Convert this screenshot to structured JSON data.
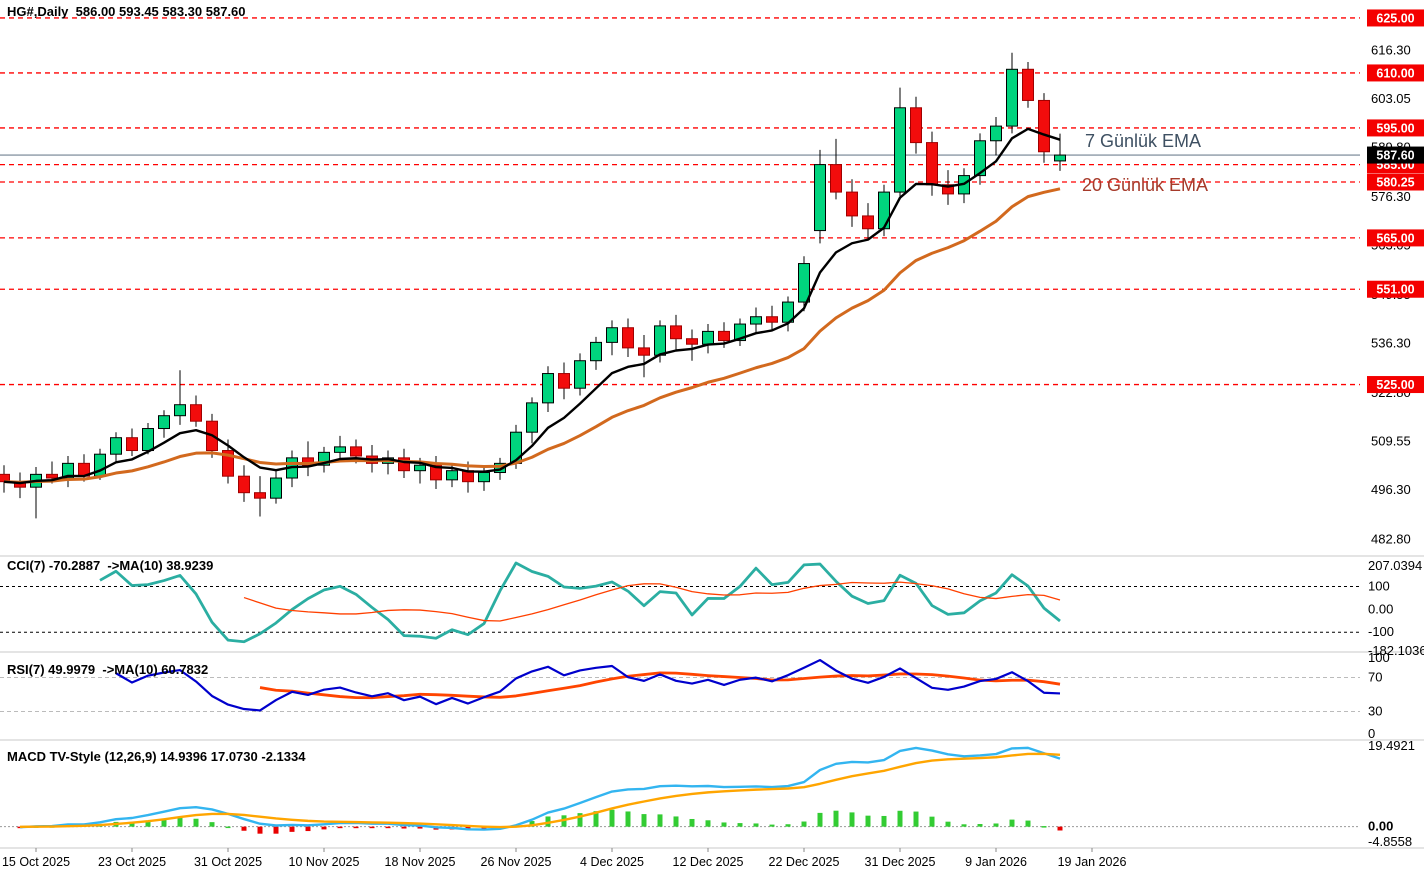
{
  "title": "HG#,Daily  586.00 593.45 583.30 587.60",
  "ema_labels": {
    "ema7": {
      "text": "7 Günlük EMA",
      "color": "#3E5062"
    },
    "ema20": {
      "text": "20 Günlük EMA",
      "color": "#A63A2A"
    }
  },
  "price_axis": {
    "marked_levels": [
      {
        "value": 625.0,
        "label": "625.00"
      },
      {
        "value": 610.0,
        "label": "610.00"
      },
      {
        "value": 595.0,
        "label": "595.00"
      },
      {
        "value": 585.0,
        "label": "585.00"
      },
      {
        "value": 580.25,
        "label": "580.25"
      },
      {
        "value": 565.0,
        "label": "565.00"
      },
      {
        "value": 551.0,
        "label": "551.00"
      },
      {
        "value": 525.0,
        "label": "525.00"
      }
    ],
    "current_price": {
      "value": 587.6,
      "label": "587.60"
    },
    "plain_ticks": [
      {
        "value": 616.3,
        "label": "616.30"
      },
      {
        "value": 603.05,
        "label": "603.05"
      },
      {
        "value": 589.8,
        "label": "589.80"
      },
      {
        "value": 576.3,
        "label": "576.30"
      },
      {
        "value": 563.05,
        "label": "563.05"
      },
      {
        "value": 549.55,
        "label": "549.55"
      },
      {
        "value": 536.3,
        "label": "536.30"
      },
      {
        "value": 522.8,
        "label": "522.80"
      },
      {
        "value": 509.55,
        "label": "509.55"
      },
      {
        "value": 496.3,
        "label": "496.30"
      },
      {
        "value": 482.8,
        "label": "482.80"
      }
    ]
  },
  "time_axis": [
    "15 Oct 2025",
    "23 Oct 2025",
    "31 Oct 2025",
    "10 Nov 2025",
    "18 Nov 2025",
    "26 Nov 2025",
    "4 Dec 2025",
    "12 Dec 2025",
    "22 Dec 2025",
    "31 Dec 2025",
    "9 Jan 2026",
    "19 Jan 2026"
  ],
  "panels": {
    "cci": {
      "title": "CCI(7) -70.2887  ->MA(10) 38.9239",
      "range": [
        207.0394,
        -182.1036
      ],
      "dashed_levels": [
        100,
        -100
      ],
      "axis_labels": [
        {
          "v": 207.0394,
          "t": "207.0394"
        },
        {
          "v": 100,
          "t": "100"
        },
        {
          "v": 0,
          "t": "0.00"
        },
        {
          "v": -100,
          "t": "-100"
        },
        {
          "v": -182.1036,
          "t": "-182.1036"
        }
      ]
    },
    "rsi": {
      "title": "RSI(7) 49.9979  ->MA(10) 60.7832",
      "range": [
        100,
        0
      ],
      "dashed_levels": [
        70,
        30
      ],
      "axis_labels": [
        {
          "v": 100,
          "t": "100"
        },
        {
          "v": 70,
          "t": "70"
        },
        {
          "v": 30,
          "t": "30"
        },
        {
          "v": 0,
          "t": "0"
        }
      ]
    },
    "macd": {
      "title": "MACD TV-Style (12,26,9) 14.9396 17.0730 -2.1334",
      "range": [
        19.4921,
        -4.8558
      ],
      "axis_labels": [
        {
          "v": 19.4921,
          "t": "19.4921",
          "bold": false
        },
        {
          "v": 0,
          "t": "0.00",
          "bold": true
        },
        {
          "v": -4.8558,
          "t": "-4.8558",
          "bold": false
        }
      ]
    }
  },
  "chart_data": {
    "type": "candlestick",
    "symbol": "HG#",
    "timeframe": "Daily",
    "ohlc_display": {
      "open": "586.00",
      "high": "593.45",
      "low": "583.30",
      "close": "587.60"
    },
    "overlays": [
      {
        "name": "EMA",
        "period": 7
      },
      {
        "name": "EMA",
        "period": 20
      }
    ],
    "sub_indicators": [
      {
        "name": "CCI",
        "period": 7,
        "ma": 10,
        "last": -70.2887,
        "ma_last": 38.9239
      },
      {
        "name": "RSI",
        "period": 7,
        "ma": 10,
        "last": 49.9979,
        "ma_last": 60.7832
      },
      {
        "name": "MACD TV-Style",
        "params": [
          12,
          26,
          9
        ],
        "macd_last": 14.9396,
        "signal_last": 17.073,
        "hist_last": -2.1334
      }
    ],
    "ylim": [
      478.5,
      629.9
    ],
    "grid": "horizontal-levels-only",
    "candles": [
      [
        500.5,
        503.0,
        495.5,
        498.5
      ],
      [
        498.5,
        501.0,
        494.0,
        497.0
      ],
      [
        497.0,
        502.5,
        488.5,
        500.5
      ],
      [
        500.5,
        504.0,
        498.0,
        499.5
      ],
      [
        499.5,
        505.5,
        497.0,
        503.5
      ],
      [
        503.5,
        506.0,
        498.5,
        500.0
      ],
      [
        500.0,
        507.5,
        499.0,
        506.0
      ],
      [
        506.0,
        512.0,
        504.0,
        510.5
      ],
      [
        510.5,
        513.0,
        505.5,
        507.0
      ],
      [
        507.0,
        514.5,
        506.0,
        513.0
      ],
      [
        513.0,
        518.0,
        510.5,
        516.5
      ],
      [
        516.5,
        528.9,
        514.0,
        519.5
      ],
      [
        519.5,
        522.0,
        513.5,
        515.0
      ],
      [
        515.0,
        517.0,
        505.0,
        507.0
      ],
      [
        507.0,
        510.0,
        498.0,
        500.0
      ],
      [
        500.0,
        503.0,
        493.0,
        495.5
      ],
      [
        495.5,
        500.0,
        489.0,
        494.0
      ],
      [
        494.0,
        501.5,
        492.5,
        499.5
      ],
      [
        499.5,
        507.0,
        497.0,
        505.0
      ],
      [
        505.0,
        509.5,
        500.0,
        503.0
      ],
      [
        503.0,
        508.0,
        501.0,
        506.5
      ],
      [
        506.5,
        511.0,
        504.0,
        508.0
      ],
      [
        508.0,
        510.0,
        503.5,
        505.5
      ],
      [
        505.5,
        508.5,
        501.0,
        503.5
      ],
      [
        503.5,
        507.0,
        500.5,
        505.0
      ],
      [
        505.0,
        507.5,
        499.5,
        501.5
      ],
      [
        501.5,
        505.0,
        498.0,
        503.0
      ],
      [
        503.0,
        505.5,
        496.5,
        499.0
      ],
      [
        499.0,
        503.5,
        497.0,
        501.5
      ],
      [
        501.5,
        504.0,
        495.5,
        498.5
      ],
      [
        498.5,
        503.0,
        496.0,
        501.0
      ],
      [
        501.0,
        505.0,
        499.0,
        503.5
      ],
      [
        503.5,
        514.0,
        502.0,
        512.0
      ],
      [
        512.0,
        521.5,
        509.0,
        520.0
      ],
      [
        520.0,
        530.0,
        517.5,
        528.0
      ],
      [
        528.0,
        531.0,
        521.0,
        524.0
      ],
      [
        524.0,
        533.5,
        522.0,
        531.5
      ],
      [
        531.5,
        538.0,
        529.0,
        536.5
      ],
      [
        536.5,
        542.5,
        533.0,
        540.5
      ],
      [
        540.5,
        543.0,
        532.5,
        535.0
      ],
      [
        535.0,
        538.5,
        527.0,
        533.0
      ],
      [
        533.0,
        542.5,
        531.0,
        541.0
      ],
      [
        541.0,
        544.0,
        534.5,
        537.5
      ],
      [
        537.5,
        540.0,
        531.5,
        536.0
      ],
      [
        536.0,
        541.5,
        533.5,
        539.5
      ],
      [
        539.5,
        542.0,
        535.0,
        537.0
      ],
      [
        537.0,
        543.0,
        535.5,
        541.5
      ],
      [
        541.5,
        546.0,
        539.0,
        543.5
      ],
      [
        543.5,
        546.5,
        540.0,
        542.0
      ],
      [
        542.0,
        549.0,
        539.5,
        547.5
      ],
      [
        547.5,
        560.0,
        545.0,
        558.0
      ],
      [
        567.0,
        589.0,
        563.5,
        585.0
      ],
      [
        585.0,
        592.0,
        575.5,
        577.5
      ],
      [
        577.5,
        581.0,
        568.0,
        571.0
      ],
      [
        571.0,
        574.5,
        565.0,
        567.5
      ],
      [
        567.5,
        579.5,
        565.5,
        577.5
      ],
      [
        577.5,
        606.0,
        575.5,
        600.5
      ],
      [
        600.5,
        603.5,
        588.0,
        591.0
      ],
      [
        591.0,
        594.0,
        576.5,
        579.5
      ],
      [
        579.5,
        583.5,
        574.0,
        577.0
      ],
      [
        577.0,
        584.0,
        574.5,
        582.0
      ],
      [
        582.0,
        593.5,
        579.5,
        591.5
      ],
      [
        591.5,
        598.0,
        587.5,
        595.5
      ],
      [
        595.5,
        615.5,
        593.5,
        611.0
      ],
      [
        611.0,
        613.0,
        600.5,
        602.5
      ],
      [
        602.5,
        604.5,
        585.5,
        588.5
      ],
      [
        586.0,
        593.45,
        583.3,
        587.6
      ]
    ]
  },
  "colors": {
    "bull": "#00D47E",
    "bear": "#F20C0C",
    "bull_border": "#000000",
    "bear_border": "#A00000",
    "wick": "#000000",
    "ema7": "#000000",
    "ema20": "#D2691E",
    "level_line": "#FF0000",
    "level_badge_bg": "#F40000",
    "level_badge_text": "#FFFFFF",
    "current_line": "#708090",
    "current_badge_bg": "#000000",
    "cci": "#2BAEA2",
    "cci_ma": "#FF4000",
    "cci_level": "#000000",
    "rsi": "#0000CC",
    "rsi_ma": "#FF4500",
    "rsi_level": "#BBBBBB",
    "macd": "#33B5F0",
    "signal": "#FFA500",
    "hist_up": "#33CC33",
    "hist_down": "#E80000",
    "zero_line": "#999999",
    "separator": "#C8C8C8",
    "axis_text": "#000000"
  }
}
